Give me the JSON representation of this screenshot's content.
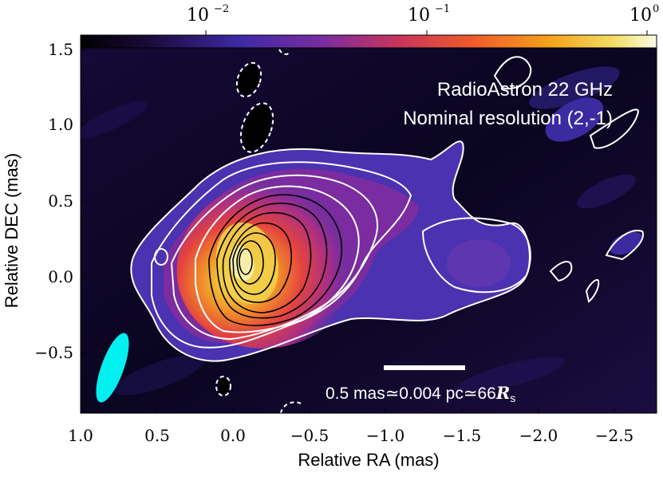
{
  "image": {
    "title_line1": "RadioAstron 22 GHz",
    "title_line2": "Nominal resolution (2,-1)",
    "scalebar_label": "0.5 mas≃0.004 pc≃66",
    "scalebar_sym": "R",
    "scalebar_sub": "s",
    "xlabel": "Relative RA (mas)",
    "ylabel": "Relative DEC (mas)",
    "xticks": [
      "1.0",
      "0.5",
      "0.0",
      "−0.5",
      "−1.0",
      "−1.5",
      "−2.0",
      "−2.5"
    ],
    "yticks": [
      "1.5",
      "1.0",
      "0.5",
      "0.0",
      "−0.5"
    ],
    "colorbar": {
      "colormap": "plasma-like (black-purple-red-orange-yellow-white)",
      "scale": "log",
      "ticks": [
        {
          "base": "10",
          "exp": "−2"
        },
        {
          "base": "10",
          "exp": "−1"
        },
        {
          "base": "10",
          "exp": "0"
        }
      ]
    },
    "beam_color": "#00f0f0",
    "contour_colors": {
      "positive_low": "#ffffff",
      "positive_high": "#000000",
      "negative": "#ffffff dashed"
    }
  }
}
